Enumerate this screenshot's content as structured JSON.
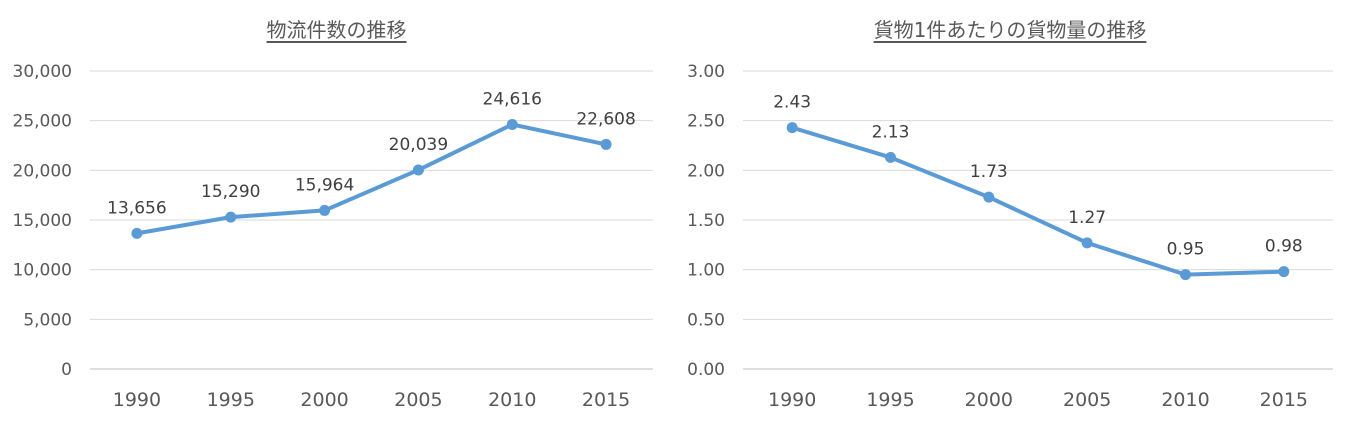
{
  "chart_data": [
    {
      "type": "line",
      "title": "物流件数の推移",
      "categories": [
        "1990",
        "1995",
        "2000",
        "2005",
        "2010",
        "2015"
      ],
      "values": [
        13656,
        15290,
        15964,
        20039,
        24616,
        22608
      ],
      "data_labels": [
        "13,656",
        "15,290",
        "15,964",
        "20,039",
        "24,616",
        "22,608"
      ],
      "y_ticks": [
        "0",
        "5,000",
        "10,000",
        "15,000",
        "20,000",
        "25,000",
        "30,000"
      ],
      "ylim": [
        0,
        30000
      ],
      "grid": true,
      "legend": "none",
      "color": "#5B9BD5"
    },
    {
      "type": "line",
      "title": "貨物1件あたりの貨物量の推移",
      "categories": [
        "1990",
        "1995",
        "2000",
        "2005",
        "2010",
        "2015"
      ],
      "values": [
        2.43,
        2.13,
        1.73,
        1.27,
        0.95,
        0.98
      ],
      "data_labels": [
        "2.43",
        "2.13",
        "1.73",
        "1.27",
        "0.95",
        "0.98"
      ],
      "y_ticks": [
        "0.00",
        "0.50",
        "1.00",
        "1.50",
        "2.00",
        "2.50",
        "3.00"
      ],
      "ylim": [
        0,
        3
      ],
      "grid": true,
      "legend": "none",
      "color": "#5B9BD5"
    }
  ]
}
